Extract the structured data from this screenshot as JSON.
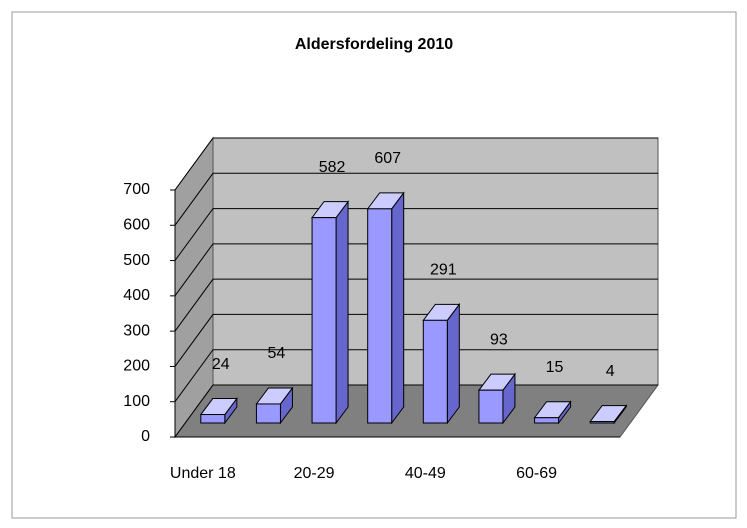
{
  "chart_data": {
    "type": "bar",
    "title": "Aldersfordeling 2010",
    "categories": [
      "Under 18",
      null,
      "20-29",
      null,
      "40-49",
      null,
      "60-69",
      null
    ],
    "values": [
      24,
      54,
      582,
      607,
      291,
      93,
      15,
      4
    ],
    "color": "#9999ff",
    "ylim": [
      0,
      700
    ],
    "yticks": [
      0,
      100,
      200,
      300,
      400,
      500,
      600,
      700
    ],
    "grid": true
  }
}
